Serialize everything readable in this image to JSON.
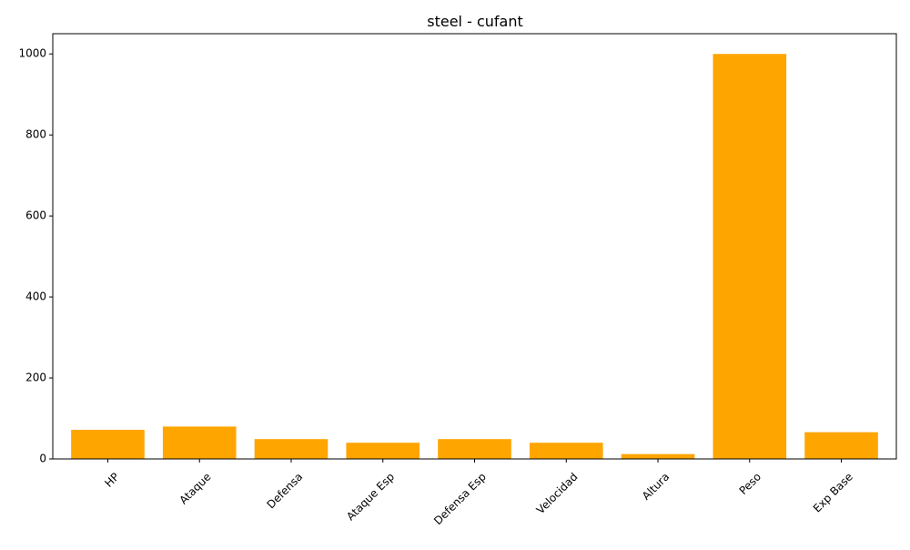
{
  "chart_data": {
    "type": "bar",
    "title": "steel - cufant",
    "xlabel": "",
    "ylabel": "",
    "categories": [
      "HP",
      "Ataque",
      "Defensa",
      "Ataque Esp",
      "Defensa Esp",
      "Velocidad",
      "Altura",
      "Peso",
      "Exp Base"
    ],
    "values": [
      72,
      80,
      49,
      40,
      49,
      40,
      12,
      1000,
      66
    ],
    "ylim": [
      0,
      1050
    ],
    "yticks": [
      0,
      200,
      400,
      600,
      800,
      1000
    ],
    "bar_color": "#ffa500",
    "grid": false,
    "legend": "none"
  }
}
